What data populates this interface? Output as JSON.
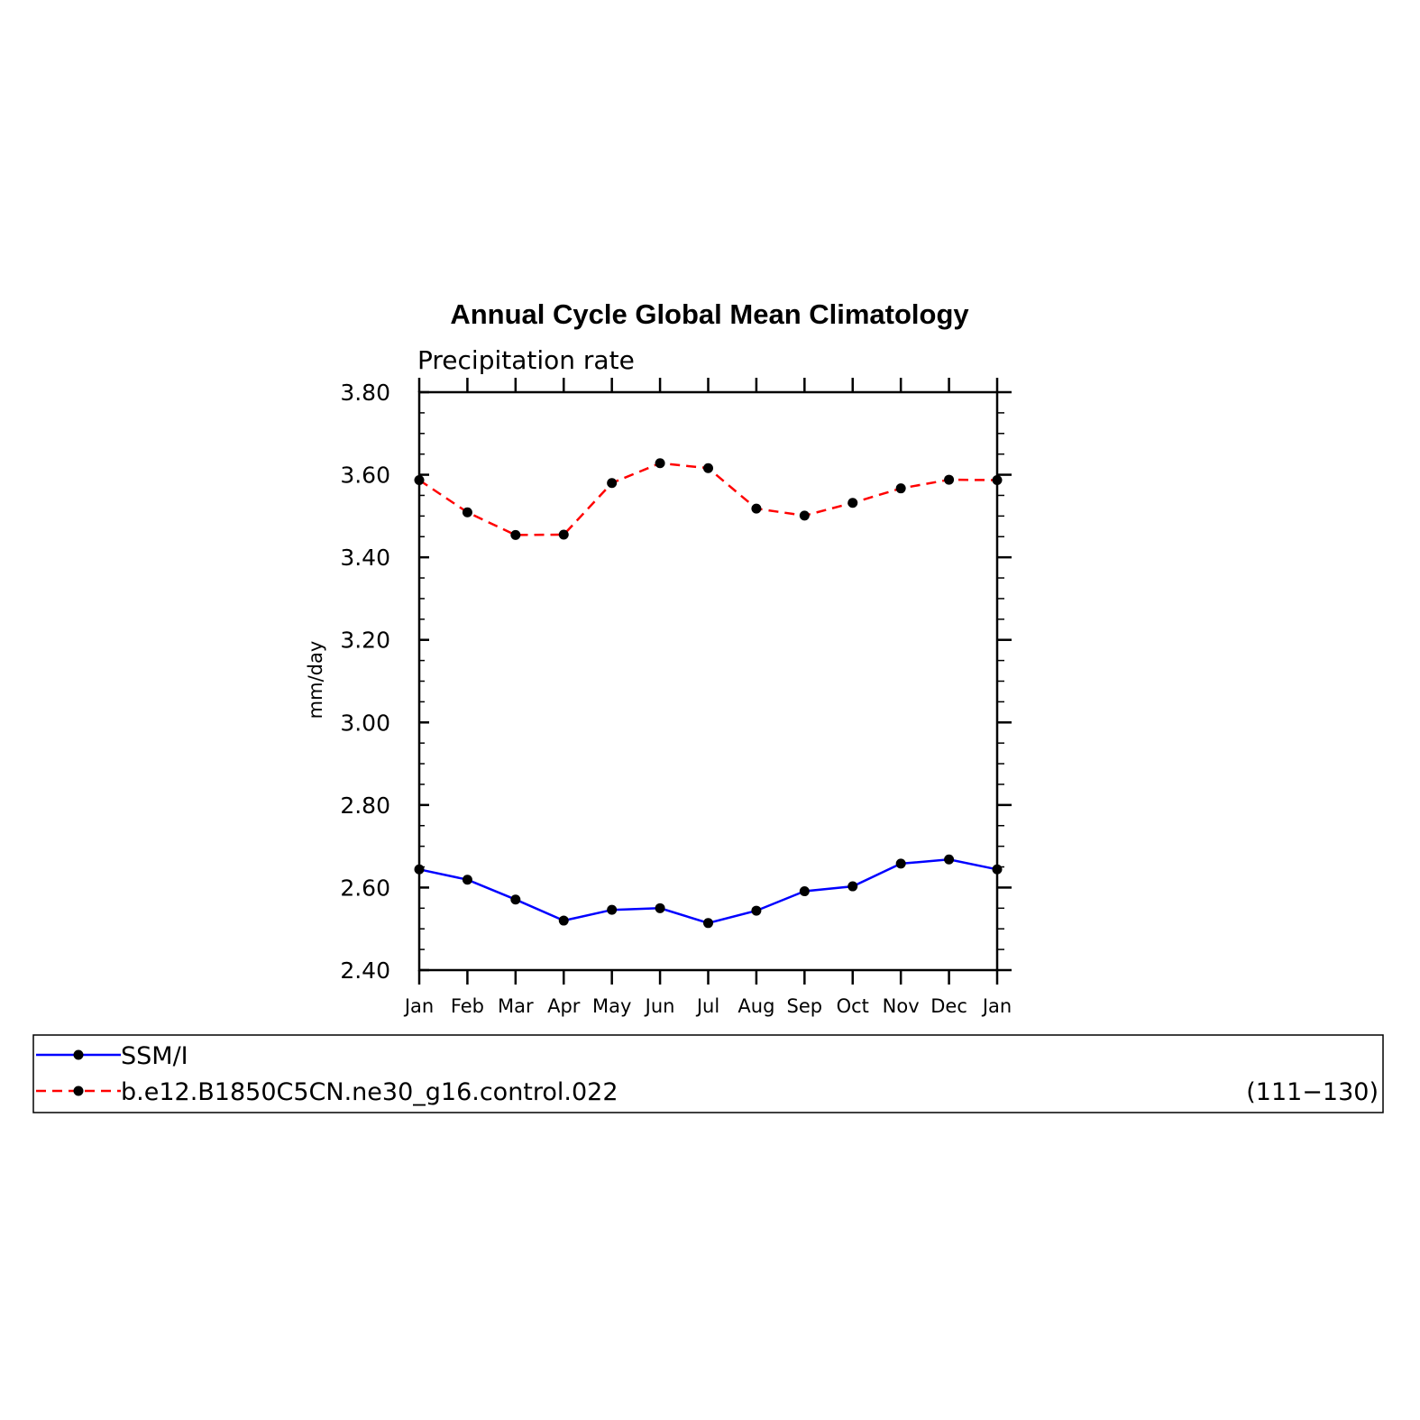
{
  "chart_data": {
    "type": "line",
    "title": "Annual Cycle Global Mean Climatology",
    "subtitle": "Precipitation rate",
    "xlabel": "",
    "ylabel": "mm/day",
    "categories": [
      "Jan",
      "Feb",
      "Mar",
      "Apr",
      "May",
      "Jun",
      "Jul",
      "Aug",
      "Sep",
      "Oct",
      "Nov",
      "Dec",
      "Jan"
    ],
    "ylim": [
      2.4,
      3.8
    ],
    "yticks": [
      "2.40",
      "2.60",
      "2.80",
      "3.00",
      "3.20",
      "3.40",
      "3.60",
      "3.80"
    ],
    "ytick_values": [
      2.4,
      2.6,
      2.8,
      3.0,
      3.2,
      3.4,
      3.6,
      3.8
    ],
    "series": [
      {
        "name": "SSM/I",
        "color": "#0000ff",
        "line_style": "solid",
        "marker": "filled-circle",
        "values": [
          2.644,
          2.619,
          2.571,
          2.52,
          2.546,
          2.55,
          2.514,
          2.544,
          2.591,
          2.603,
          2.658,
          2.668,
          2.644
        ]
      },
      {
        "name": "b.e12.B1850C5CN.ne30_g16.control.022",
        "period": "(111−130)",
        "color": "#ff0000",
        "line_style": "dashed",
        "marker": "filled-circle",
        "values": [
          3.587,
          3.509,
          3.454,
          3.455,
          3.58,
          3.628,
          3.616,
          3.518,
          3.501,
          3.532,
          3.567,
          3.588,
          3.587
        ]
      }
    ],
    "legend_position": "bottom",
    "grid": false
  }
}
